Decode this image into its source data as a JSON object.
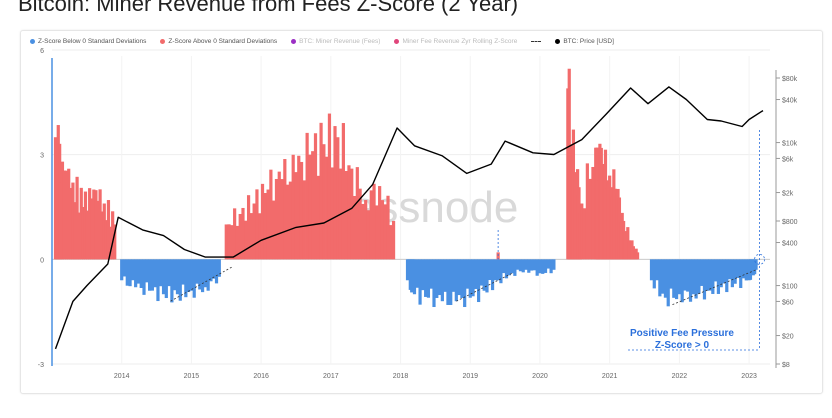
{
  "title": "Bitcoin: Miner Revenue from Fees Z-Score (2 Year)",
  "legend": [
    {
      "label": "Z-Score Below 0 Standard Deviations",
      "color": "#4a90e2",
      "marker": "dot",
      "dim": false
    },
    {
      "label": "Z-Score Above 0 Standard Deviations",
      "color": "#f26b6b",
      "marker": "dot",
      "dim": false
    },
    {
      "label": "BTC: Miner Revenue (Fees)",
      "color": "#9b2fc4",
      "marker": "dot",
      "dim": true
    },
    {
      "label": "Miner Fee Revenue Zyr Rolling Z-Score",
      "color": "#e0457b",
      "marker": "dot",
      "dim": true
    },
    {
      "label": "",
      "color": "#333333",
      "marker": "dash",
      "dim": false
    },
    {
      "label": "BTC: Price [USD]",
      "color": "#000000",
      "marker": "dot",
      "dim": false
    }
  ],
  "watermark": "glassnode",
  "annotation": {
    "line1": "Positive Fee Pressure",
    "line2": "Z-Score > 0",
    "color": "#2a6fdb"
  },
  "chart_data": {
    "type": "area",
    "xlim": [
      2013.0,
      2023.3
    ],
    "x_ticks": [
      "2014",
      "2015",
      "2016",
      "2017",
      "2018",
      "2019",
      "2020",
      "2021",
      "2022",
      "2023"
    ],
    "y_left": {
      "ylim": [
        -3,
        6
      ],
      "ticks": [
        "-3",
        "0",
        "3",
        "6"
      ],
      "tick_values": [
        -3,
        0,
        3,
        6
      ]
    },
    "y_right": {
      "scale": "log",
      "ticks": [
        "$8",
        "$20",
        "$60",
        "$100",
        "$400",
        "$800",
        "$2k",
        "$6k",
        "$10k",
        "$40k",
        "$80k"
      ],
      "tick_values": [
        8,
        20,
        60,
        100,
        400,
        800,
        2000,
        6000,
        10000,
        40000,
        80000
      ]
    },
    "series": [
      {
        "name": "Z-Score Below 0 Standard Deviations",
        "color": "#4a90e2",
        "x": [
          2014.0,
          2014.2,
          2014.4,
          2014.6,
          2014.8,
          2015.0,
          2015.2,
          2015.4,
          2018.1,
          2018.2,
          2018.4,
          2018.6,
          2018.8,
          2019.0,
          2019.2,
          2019.4,
          2019.6,
          2019.8,
          2020.0,
          2020.2,
          2021.6,
          2021.8,
          2022.0,
          2022.2,
          2022.4,
          2022.6,
          2022.8,
          2023.0,
          2023.1
        ],
        "values": [
          -0.6,
          -0.8,
          -0.9,
          -1.0,
          -1.0,
          -0.9,
          -0.8,
          -0.5,
          -0.6,
          -1.0,
          -1.1,
          -1.2,
          -1.2,
          -1.1,
          -0.9,
          -0.6,
          -0.4,
          -0.3,
          -0.4,
          -0.3,
          -0.6,
          -1.1,
          -1.0,
          -1.0,
          -0.9,
          -0.8,
          -0.7,
          -0.6,
          -0.3
        ]
      },
      {
        "name": "Z-Score Above 0 Standard Deviations",
        "color": "#f26b6b",
        "x": [
          2013.05,
          2013.15,
          2013.3,
          2013.45,
          2013.6,
          2013.75,
          2013.9,
          2015.5,
          2015.7,
          2015.9,
          2016.1,
          2016.3,
          2016.5,
          2016.7,
          2016.9,
          2017.1,
          2017.3,
          2017.5,
          2017.7,
          2017.9,
          2019.4,
          2020.4,
          2020.5,
          2020.6,
          2020.8,
          2020.9,
          2021.0,
          2021.1,
          2021.2,
          2021.3,
          2021.4
        ],
        "values": [
          3.5,
          2.8,
          2.2,
          1.5,
          2.0,
          1.6,
          1.0,
          1.0,
          1.3,
          1.6,
          2.0,
          2.3,
          2.5,
          3.0,
          3.3,
          3.5,
          2.6,
          1.7,
          2.1,
          1.1,
          0.2,
          4.9,
          2.5,
          1.6,
          3.2,
          2.7,
          2.4,
          1.9,
          1.1,
          0.5,
          0.2
        ]
      },
      {
        "name": "BTC: Price [USD]",
        "color": "#000000",
        "x": [
          2013.05,
          2013.3,
          2013.5,
          2013.8,
          2013.95,
          2014.3,
          2014.6,
          2014.9,
          2015.2,
          2015.6,
          2016.0,
          2016.5,
          2016.9,
          2017.3,
          2017.6,
          2017.95,
          2018.2,
          2018.6,
          2018.95,
          2019.3,
          2019.5,
          2019.9,
          2020.2,
          2020.6,
          2020.95,
          2021.3,
          2021.55,
          2021.85,
          2022.1,
          2022.4,
          2022.6,
          2022.9,
          2023.0,
          2023.2
        ],
        "values": [
          13,
          60,
          100,
          200,
          900,
          600,
          500,
          320,
          250,
          250,
          430,
          650,
          750,
          1200,
          2600,
          16000,
          9000,
          6500,
          3700,
          5000,
          10500,
          7200,
          6800,
          11000,
          25000,
          58000,
          35000,
          60000,
          40000,
          21000,
          20000,
          16800,
          21000,
          28000
        ]
      }
    ],
    "grid": true,
    "legend_position": "top"
  }
}
